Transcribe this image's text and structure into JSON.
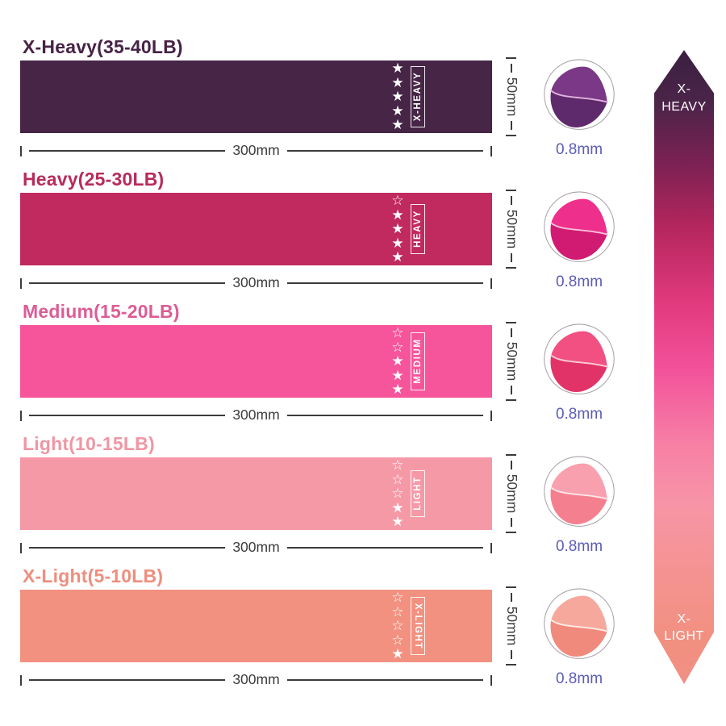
{
  "rows": [
    {
      "title": "X-Heavy(35-40LB)",
      "label": "X-HEAVY",
      "stars_filled": 5,
      "stars_total": 5,
      "width_label": "300mm",
      "height_label": "50mm",
      "thickness_label": "0.8mm",
      "band_color": "#462546",
      "title_color": "#472245",
      "circle": {
        "face_color": "#7b3887",
        "body_color": "#5e2a6b",
        "seam_color": "#dfb2dd"
      }
    },
    {
      "title": "Heavy(25-30LB)",
      "label": "HEAVY",
      "stars_filled": 4,
      "stars_total": 5,
      "width_label": "300mm",
      "height_label": "50mm",
      "thickness_label": "0.8mm",
      "band_color": "#c02a5e",
      "title_color": "#b82b5b",
      "circle": {
        "face_color": "#ee2f8b",
        "body_color": "#d11a72",
        "seam_color": "#f9bcd9"
      }
    },
    {
      "title": "Medium(15-20LB)",
      "label": "MEDIUM",
      "stars_filled": 3,
      "stars_total": 5,
      "width_label": "300mm",
      "height_label": "50mm",
      "thickness_label": "0.8mm",
      "band_color": "#f6559b",
      "title_color": "#dd5c95",
      "circle": {
        "face_color": "#f25082",
        "body_color": "#e23368",
        "seam_color": "#fbc9d4"
      }
    },
    {
      "title": "Light(10-15LB)",
      "label": "LIGHT",
      "stars_filled": 2,
      "stars_total": 5,
      "width_label": "300mm",
      "height_label": "50mm",
      "thickness_label": "0.8mm",
      "band_color": "#f699a7",
      "title_color": "#f096a4",
      "circle": {
        "face_color": "#f9a0ae",
        "body_color": "#f4808f",
        "seam_color": "#fde5e9"
      }
    },
    {
      "title": "X-Light(5-10LB)",
      "label": "X-LIGHT",
      "stars_filled": 1,
      "stars_total": 5,
      "width_label": "300mm",
      "height_label": "50mm",
      "thickness_label": "0.8mm",
      "band_color": "#f29180",
      "title_color": "#ee8e7e",
      "circle": {
        "face_color": "#f6a89d",
        "body_color": "#f08a7d",
        "seam_color": "#fdeae5"
      }
    }
  ],
  "scale": {
    "top_label": "X-HEAVY",
    "bottom_label": "X-LIGHT",
    "gradient": [
      "#3a2040 0%",
      "#4a2449 8%",
      "#7c2153 18%",
      "#b5265e 28%",
      "#e23a7e 40%",
      "#f2519a 50%",
      "#f77fa5 62%",
      "#f795a6 72%",
      "#f4928f 84%",
      "#f19080 93%",
      "#f18f84 100%"
    ]
  },
  "accents": {
    "dimension_color": "#3c3c3c",
    "thickness_text_color": "#5c5cb8",
    "star_color": "#ffffff"
  }
}
